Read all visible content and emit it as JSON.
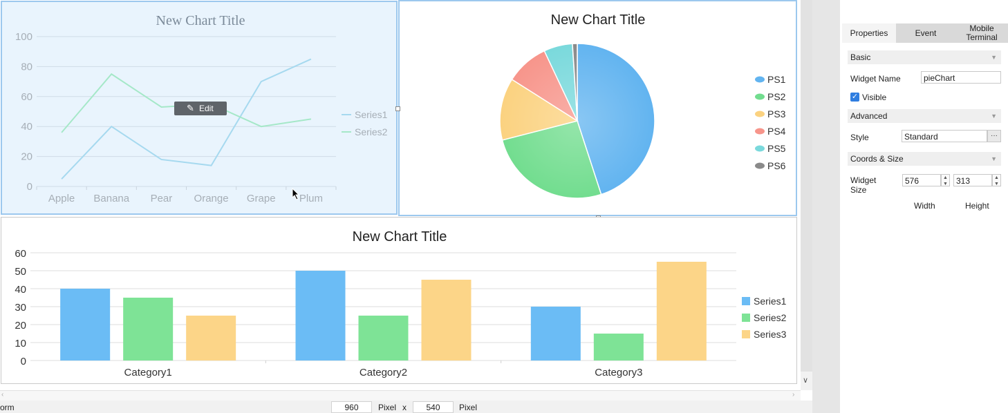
{
  "charts": {
    "line": {
      "title": "New Chart Title",
      "edit_label": "Edit",
      "chart_data": {
        "type": "line",
        "title": "New Chart Title",
        "categories": [
          "Apple",
          "Banana",
          "Pear",
          "Orange",
          "Grape",
          "Plum"
        ],
        "series": [
          {
            "name": "Series1",
            "values": [
              5,
              40,
              18,
              14,
              70,
              85
            ],
            "color": "#a6d9ef"
          },
          {
            "name": "Series2",
            "values": [
              36,
              75,
              53,
              55,
              40,
              45
            ],
            "color": "#a5e8c8"
          }
        ],
        "ylim": [
          0,
          100
        ],
        "yticks": [
          0,
          20,
          40,
          60,
          80,
          100
        ],
        "grid": true,
        "legend": "right"
      }
    },
    "pie": {
      "title": "New Chart Title",
      "chart_data": {
        "type": "pie",
        "title": "New Chart Title",
        "labels": [
          "PS1",
          "PS2",
          "PS3",
          "PS4",
          "PS5",
          "PS6"
        ],
        "values": [
          45,
          26,
          13,
          9,
          6,
          1
        ],
        "colors": [
          "#62b4f0",
          "#72dd8f",
          "#fbd280",
          "#f7958b",
          "#7ad9dc",
          "#8a8a8a"
        ],
        "legend": "right"
      }
    },
    "bar": {
      "title": "New Chart Title",
      "chart_data": {
        "type": "bar",
        "title": "New Chart Title",
        "categories": [
          "Category1",
          "Category2",
          "Category3"
        ],
        "series": [
          {
            "name": "Series1",
            "values": [
              40,
              50,
              30
            ],
            "color": "#6bbcf5"
          },
          {
            "name": "Series2",
            "values": [
              35,
              25,
              15
            ],
            "color": "#7ee396"
          },
          {
            "name": "Series3",
            "values": [
              25,
              45,
              55
            ],
            "color": "#fcd588"
          }
        ],
        "ylim": [
          0,
          60
        ],
        "yticks": [
          0,
          10,
          20,
          30,
          40,
          50,
          60
        ],
        "grid": true,
        "legend": "right"
      }
    }
  },
  "properties_panel": {
    "tabs": [
      "Properties",
      "Event",
      "Mobile Terminal"
    ],
    "sections": {
      "basic": "Basic",
      "advanced": "Advanced",
      "coords": "Coords & Size"
    },
    "widget_name_label": "Widget Name",
    "widget_name_value": "pieChart",
    "visible_label": "Visible",
    "visible_checked": true,
    "style_label": "Style",
    "style_value": "Standard",
    "style_more": "···",
    "widget_size_label": "Widget Size",
    "width_value": "576",
    "height_value": "313",
    "width_label": "Width",
    "height_label": "Height"
  },
  "status_bar": {
    "form_label": "orm",
    "canvas_width": "960",
    "canvas_height": "540",
    "unit": "Pixel",
    "times": "x"
  }
}
